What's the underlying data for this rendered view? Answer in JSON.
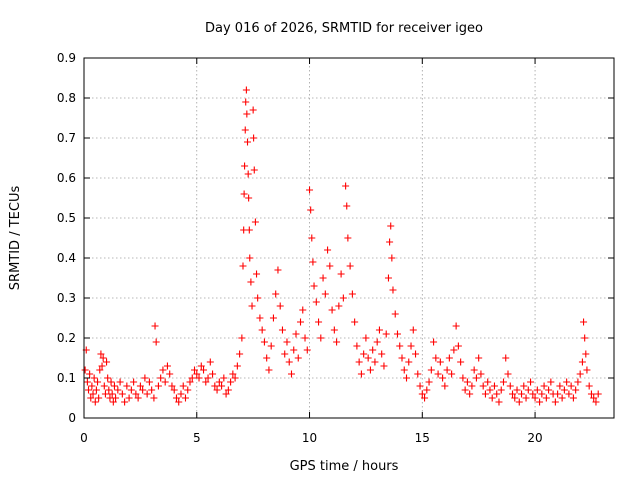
{
  "chart_data": {
    "type": "scatter",
    "title": "Day 016 of 2026, SRMTID for receiver igeo",
    "xlabel": "GPS time / hours",
    "ylabel": "SRMTID / TECUs",
    "xlim": [
      0,
      23.5
    ],
    "ylim": [
      0,
      0.9
    ],
    "x_ticks": [
      0,
      5,
      10,
      15,
      20
    ],
    "x_tick_labels": [
      "0",
      "5",
      "10",
      "15",
      "20"
    ],
    "y_ticks": [
      0,
      0.1,
      0.2,
      0.3,
      0.4,
      0.5,
      0.6,
      0.7,
      0.8,
      0.9
    ],
    "y_tick_labels": [
      "0",
      "0.1",
      "0.2",
      "0.3",
      "0.4",
      "0.5",
      "0.6",
      "0.7",
      "0.8",
      "0.9"
    ],
    "grid": true,
    "marker": "+",
    "color": "#ff0000",
    "series": [
      {
        "name": "SRMTID",
        "points": [
          [
            0.05,
            0.12
          ],
          [
            0.1,
            0.17
          ],
          [
            0.15,
            0.09
          ],
          [
            0.2,
            0.07
          ],
          [
            0.25,
            0.11
          ],
          [
            0.3,
            0.05
          ],
          [
            0.35,
            0.08
          ],
          [
            0.4,
            0.06
          ],
          [
            0.45,
            0.1
          ],
          [
            0.5,
            0.04
          ],
          [
            0.55,
            0.07
          ],
          [
            0.6,
            0.09
          ],
          [
            0.65,
            0.05
          ],
          [
            0.7,
            0.12
          ],
          [
            0.75,
            0.16
          ],
          [
            0.8,
            0.13
          ],
          [
            0.85,
            0.15
          ],
          [
            0.9,
            0.08
          ],
          [
            0.95,
            0.06
          ],
          [
            1.0,
            0.14
          ],
          [
            1.05,
            0.1
          ],
          [
            1.1,
            0.07
          ],
          [
            1.15,
            0.05
          ],
          [
            1.2,
            0.09
          ],
          [
            1.25,
            0.06
          ],
          [
            1.3,
            0.04
          ],
          [
            1.35,
            0.08
          ],
          [
            1.4,
            0.05
          ],
          [
            1.5,
            0.07
          ],
          [
            1.6,
            0.09
          ],
          [
            1.7,
            0.06
          ],
          [
            1.8,
            0.04
          ],
          [
            1.9,
            0.08
          ],
          [
            2.0,
            0.05
          ],
          [
            2.1,
            0.07
          ],
          [
            2.2,
            0.09
          ],
          [
            2.3,
            0.06
          ],
          [
            2.4,
            0.05
          ],
          [
            2.5,
            0.08
          ],
          [
            2.6,
            0.07
          ],
          [
            2.7,
            0.1
          ],
          [
            2.8,
            0.06
          ],
          [
            2.9,
            0.09
          ],
          [
            3.0,
            0.07
          ],
          [
            3.1,
            0.05
          ],
          [
            3.15,
            0.23
          ],
          [
            3.2,
            0.19
          ],
          [
            3.3,
            0.08
          ],
          [
            3.4,
            0.1
          ],
          [
            3.5,
            0.12
          ],
          [
            3.6,
            0.09
          ],
          [
            3.7,
            0.13
          ],
          [
            3.8,
            0.11
          ],
          [
            3.9,
            0.08
          ],
          [
            4.0,
            0.07
          ],
          [
            4.1,
            0.05
          ],
          [
            4.2,
            0.04
          ],
          [
            4.3,
            0.06
          ],
          [
            4.4,
            0.08
          ],
          [
            4.5,
            0.05
          ],
          [
            4.6,
            0.07
          ],
          [
            4.7,
            0.09
          ],
          [
            4.8,
            0.1
          ],
          [
            4.9,
            0.12
          ],
          [
            5.0,
            0.11
          ],
          [
            5.1,
            0.1
          ],
          [
            5.2,
            0.13
          ],
          [
            5.3,
            0.12
          ],
          [
            5.4,
            0.09
          ],
          [
            5.5,
            0.1
          ],
          [
            5.6,
            0.14
          ],
          [
            5.7,
            0.11
          ],
          [
            5.8,
            0.08
          ],
          [
            5.9,
            0.07
          ],
          [
            6.0,
            0.09
          ],
          [
            6.1,
            0.08
          ],
          [
            6.2,
            0.1
          ],
          [
            6.3,
            0.06
          ],
          [
            6.4,
            0.07
          ],
          [
            6.5,
            0.09
          ],
          [
            6.6,
            0.11
          ],
          [
            6.7,
            0.1
          ],
          [
            6.8,
            0.13
          ],
          [
            6.9,
            0.16
          ],
          [
            7.0,
            0.2
          ],
          [
            7.05,
            0.38
          ],
          [
            7.08,
            0.47
          ],
          [
            7.1,
            0.56
          ],
          [
            7.12,
            0.63
          ],
          [
            7.15,
            0.72
          ],
          [
            7.17,
            0.79
          ],
          [
            7.2,
            0.82
          ],
          [
            7.22,
            0.76
          ],
          [
            7.25,
            0.69
          ],
          [
            7.28,
            0.61
          ],
          [
            7.3,
            0.55
          ],
          [
            7.33,
            0.47
          ],
          [
            7.35,
            0.4
          ],
          [
            7.4,
            0.34
          ],
          [
            7.45,
            0.28
          ],
          [
            7.5,
            0.77
          ],
          [
            7.52,
            0.7
          ],
          [
            7.55,
            0.62
          ],
          [
            7.6,
            0.49
          ],
          [
            7.65,
            0.36
          ],
          [
            7.7,
            0.3
          ],
          [
            7.8,
            0.25
          ],
          [
            7.9,
            0.22
          ],
          [
            8.0,
            0.19
          ],
          [
            8.1,
            0.15
          ],
          [
            8.2,
            0.12
          ],
          [
            8.3,
            0.18
          ],
          [
            8.4,
            0.25
          ],
          [
            8.5,
            0.31
          ],
          [
            8.6,
            0.37
          ],
          [
            8.7,
            0.28
          ],
          [
            8.8,
            0.22
          ],
          [
            8.9,
            0.16
          ],
          [
            9.0,
            0.19
          ],
          [
            9.1,
            0.14
          ],
          [
            9.2,
            0.11
          ],
          [
            9.3,
            0.17
          ],
          [
            9.4,
            0.21
          ],
          [
            9.5,
            0.15
          ],
          [
            9.6,
            0.24
          ],
          [
            9.7,
            0.27
          ],
          [
            9.8,
            0.2
          ],
          [
            9.9,
            0.17
          ],
          [
            10.0,
            0.57
          ],
          [
            10.05,
            0.52
          ],
          [
            10.1,
            0.45
          ],
          [
            10.15,
            0.39
          ],
          [
            10.2,
            0.33
          ],
          [
            10.3,
            0.29
          ],
          [
            10.4,
            0.24
          ],
          [
            10.5,
            0.2
          ],
          [
            10.6,
            0.35
          ],
          [
            10.7,
            0.31
          ],
          [
            10.8,
            0.42
          ],
          [
            10.9,
            0.38
          ],
          [
            11.0,
            0.27
          ],
          [
            11.1,
            0.22
          ],
          [
            11.2,
            0.19
          ],
          [
            11.3,
            0.28
          ],
          [
            11.4,
            0.36
          ],
          [
            11.5,
            0.3
          ],
          [
            11.6,
            0.58
          ],
          [
            11.65,
            0.53
          ],
          [
            11.7,
            0.45
          ],
          [
            11.8,
            0.38
          ],
          [
            11.9,
            0.31
          ],
          [
            12.0,
            0.24
          ],
          [
            12.1,
            0.18
          ],
          [
            12.2,
            0.14
          ],
          [
            12.3,
            0.11
          ],
          [
            12.4,
            0.16
          ],
          [
            12.5,
            0.2
          ],
          [
            12.6,
            0.15
          ],
          [
            12.7,
            0.12
          ],
          [
            12.8,
            0.17
          ],
          [
            12.9,
            0.14
          ],
          [
            13.0,
            0.19
          ],
          [
            13.1,
            0.22
          ],
          [
            13.2,
            0.16
          ],
          [
            13.3,
            0.13
          ],
          [
            13.4,
            0.21
          ],
          [
            13.5,
            0.35
          ],
          [
            13.55,
            0.44
          ],
          [
            13.6,
            0.48
          ],
          [
            13.65,
            0.4
          ],
          [
            13.7,
            0.32
          ],
          [
            13.8,
            0.26
          ],
          [
            13.9,
            0.21
          ],
          [
            14.0,
            0.18
          ],
          [
            14.1,
            0.15
          ],
          [
            14.2,
            0.12
          ],
          [
            14.3,
            0.1
          ],
          [
            14.4,
            0.14
          ],
          [
            14.5,
            0.18
          ],
          [
            14.6,
            0.22
          ],
          [
            14.7,
            0.16
          ],
          [
            14.8,
            0.11
          ],
          [
            14.9,
            0.08
          ],
          [
            15.0,
            0.06
          ],
          [
            15.1,
            0.05
          ],
          [
            15.2,
            0.07
          ],
          [
            15.3,
            0.09
          ],
          [
            15.4,
            0.12
          ],
          [
            15.5,
            0.19
          ],
          [
            15.6,
            0.15
          ],
          [
            15.7,
            0.11
          ],
          [
            15.8,
            0.14
          ],
          [
            15.9,
            0.1
          ],
          [
            16.0,
            0.08
          ],
          [
            16.1,
            0.12
          ],
          [
            16.2,
            0.15
          ],
          [
            16.3,
            0.11
          ],
          [
            16.4,
            0.17
          ],
          [
            16.5,
            0.23
          ],
          [
            16.6,
            0.18
          ],
          [
            16.7,
            0.14
          ],
          [
            16.8,
            0.1
          ],
          [
            16.9,
            0.07
          ],
          [
            17.0,
            0.09
          ],
          [
            17.1,
            0.06
          ],
          [
            17.2,
            0.08
          ],
          [
            17.3,
            0.12
          ],
          [
            17.4,
            0.1
          ],
          [
            17.5,
            0.15
          ],
          [
            17.6,
            0.11
          ],
          [
            17.7,
            0.08
          ],
          [
            17.8,
            0.06
          ],
          [
            17.9,
            0.09
          ],
          [
            18.0,
            0.07
          ],
          [
            18.1,
            0.05
          ],
          [
            18.2,
            0.08
          ],
          [
            18.3,
            0.06
          ],
          [
            18.4,
            0.04
          ],
          [
            18.5,
            0.07
          ],
          [
            18.6,
            0.09
          ],
          [
            18.7,
            0.15
          ],
          [
            18.8,
            0.11
          ],
          [
            18.9,
            0.08
          ],
          [
            19.0,
            0.06
          ],
          [
            19.1,
            0.05
          ],
          [
            19.2,
            0.07
          ],
          [
            19.3,
            0.04
          ],
          [
            19.4,
            0.06
          ],
          [
            19.5,
            0.08
          ],
          [
            19.6,
            0.05
          ],
          [
            19.7,
            0.07
          ],
          [
            19.8,
            0.09
          ],
          [
            19.9,
            0.06
          ],
          [
            20.0,
            0.05
          ],
          [
            20.1,
            0.07
          ],
          [
            20.2,
            0.04
          ],
          [
            20.3,
            0.06
          ],
          [
            20.4,
            0.08
          ],
          [
            20.5,
            0.05
          ],
          [
            20.6,
            0.07
          ],
          [
            20.7,
            0.09
          ],
          [
            20.8,
            0.06
          ],
          [
            20.9,
            0.04
          ],
          [
            21.0,
            0.06
          ],
          [
            21.1,
            0.08
          ],
          [
            21.2,
            0.05
          ],
          [
            21.3,
            0.07
          ],
          [
            21.4,
            0.09
          ],
          [
            21.5,
            0.06
          ],
          [
            21.6,
            0.08
          ],
          [
            21.7,
            0.05
          ],
          [
            21.8,
            0.07
          ],
          [
            21.9,
            0.09
          ],
          [
            22.0,
            0.11
          ],
          [
            22.1,
            0.14
          ],
          [
            22.15,
            0.24
          ],
          [
            22.2,
            0.2
          ],
          [
            22.25,
            0.16
          ],
          [
            22.3,
            0.12
          ],
          [
            22.4,
            0.08
          ],
          [
            22.5,
            0.06
          ],
          [
            22.6,
            0.05
          ],
          [
            22.7,
            0.04
          ],
          [
            22.8,
            0.06
          ]
        ]
      }
    ]
  }
}
